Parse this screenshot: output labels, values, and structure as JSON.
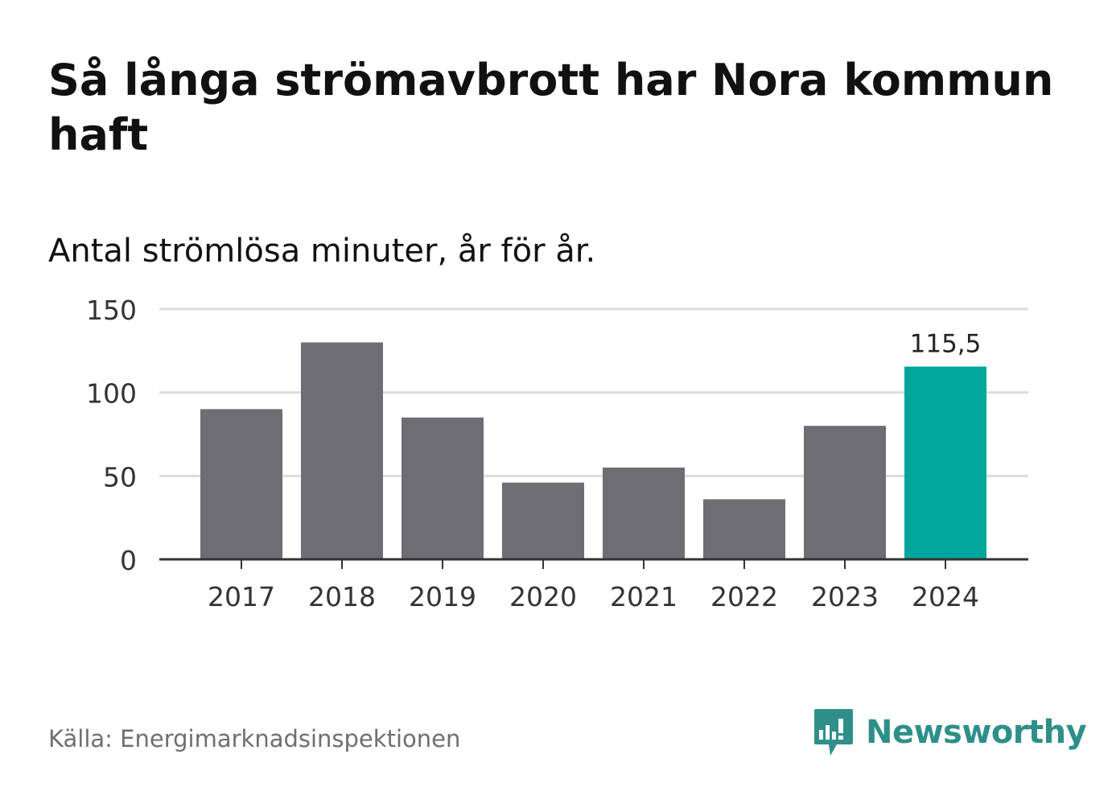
{
  "header": {
    "title": "Så långa strömavbrott har Nora kommun haft",
    "subtitle": "Antal strömlösa minuter, år för år."
  },
  "footer": {
    "source": "Källa: Energimarknadsinspektionen",
    "brand": "Newsworthy"
  },
  "colors": {
    "bar_default": "#6e6d73",
    "bar_highlight": "#00a69b",
    "grid": "#dcdcdc",
    "axis": "#333333",
    "brand": "#2f8f88"
  },
  "icons": {
    "brand_logo": "newsworthy-logo-icon"
  },
  "chart_data": {
    "type": "bar",
    "categories": [
      "2017",
      "2018",
      "2019",
      "2020",
      "2021",
      "2022",
      "2023",
      "2024"
    ],
    "values": [
      90,
      130,
      85,
      46,
      55,
      36,
      80,
      115.5
    ],
    "highlight_index": 7,
    "data_labels": [
      {
        "index": 7,
        "text": "115,5"
      }
    ],
    "yticks": [
      "0",
      "50",
      "100",
      "150"
    ],
    "ytick_values": [
      0,
      50,
      100,
      150
    ],
    "ylim": [
      0,
      150
    ],
    "grid": true,
    "xlabel": "",
    "ylabel": ""
  }
}
